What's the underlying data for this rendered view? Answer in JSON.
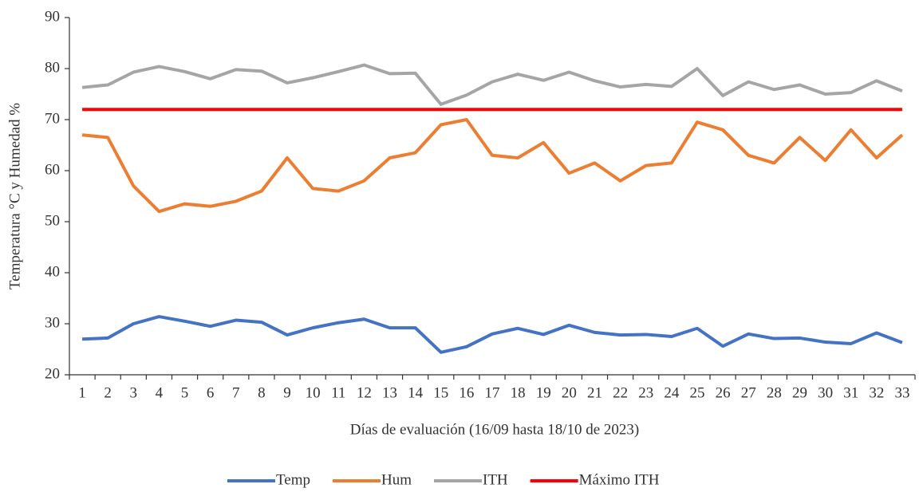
{
  "chart_data": {
    "type": "line",
    "x_label": "Días de evaluación (16/09 hasta 18/10 de 2023)",
    "y_label": "Temperatura °C y Humedad %",
    "categories": [
      1,
      2,
      3,
      4,
      5,
      6,
      7,
      8,
      9,
      10,
      11,
      12,
      13,
      14,
      15,
      16,
      17,
      18,
      19,
      20,
      21,
      22,
      23,
      24,
      25,
      26,
      27,
      28,
      29,
      30,
      31,
      32,
      33
    ],
    "series": [
      {
        "name": "Temp",
        "color": "#4472c4",
        "values": [
          27,
          27.2,
          30,
          31.4,
          30.5,
          29.5,
          30.7,
          30.3,
          27.8,
          29.2,
          30.2,
          30.9,
          29.2,
          29.2,
          24.4,
          25.5,
          28,
          29.1,
          27.9,
          29.7,
          28.3,
          27.8,
          27.9,
          27.5,
          29.1,
          25.6,
          28,
          27.1,
          27.2,
          26.4,
          26.1,
          28.2,
          26.3
        ]
      },
      {
        "name": "Hum",
        "color": "#ed7d31",
        "values": [
          67,
          66.5,
          57,
          52,
          53.5,
          53,
          54,
          56,
          62.5,
          56.5,
          56,
          58,
          62.5,
          63.5,
          69,
          70,
          63,
          62.5,
          65.5,
          59.5,
          61.5,
          58,
          61,
          61.5,
          69.5,
          68,
          63,
          61.5,
          66.5,
          62,
          68,
          62.5,
          67
        ]
      },
      {
        "name": "ITH",
        "color": "#a5a5a5",
        "values": [
          76.3,
          76.8,
          79.3,
          80.4,
          79.4,
          78,
          79.8,
          79.5,
          77.2,
          78.2,
          79.4,
          80.7,
          79,
          79.1,
          73,
          74.8,
          77.4,
          78.9,
          77.7,
          79.3,
          77.6,
          76.4,
          76.9,
          76.5,
          80,
          74.7,
          77.4,
          75.9,
          76.8,
          75,
          75.3,
          77.6,
          75.6
        ]
      },
      {
        "name": "Máximo ITH",
        "color": "#ff0000",
        "values": [
          72,
          72,
          72,
          72,
          72,
          72,
          72,
          72,
          72,
          72,
          72,
          72,
          72,
          72,
          72,
          72,
          72,
          72,
          72,
          72,
          72,
          72,
          72,
          72,
          72,
          72,
          72,
          72,
          72,
          72,
          72,
          72,
          72
        ]
      }
    ],
    "ylim": [
      20,
      90
    ],
    "yticks": [
      20,
      30,
      40,
      50,
      60,
      70,
      80,
      90
    ],
    "grid": false,
    "legend": "bottom"
  }
}
